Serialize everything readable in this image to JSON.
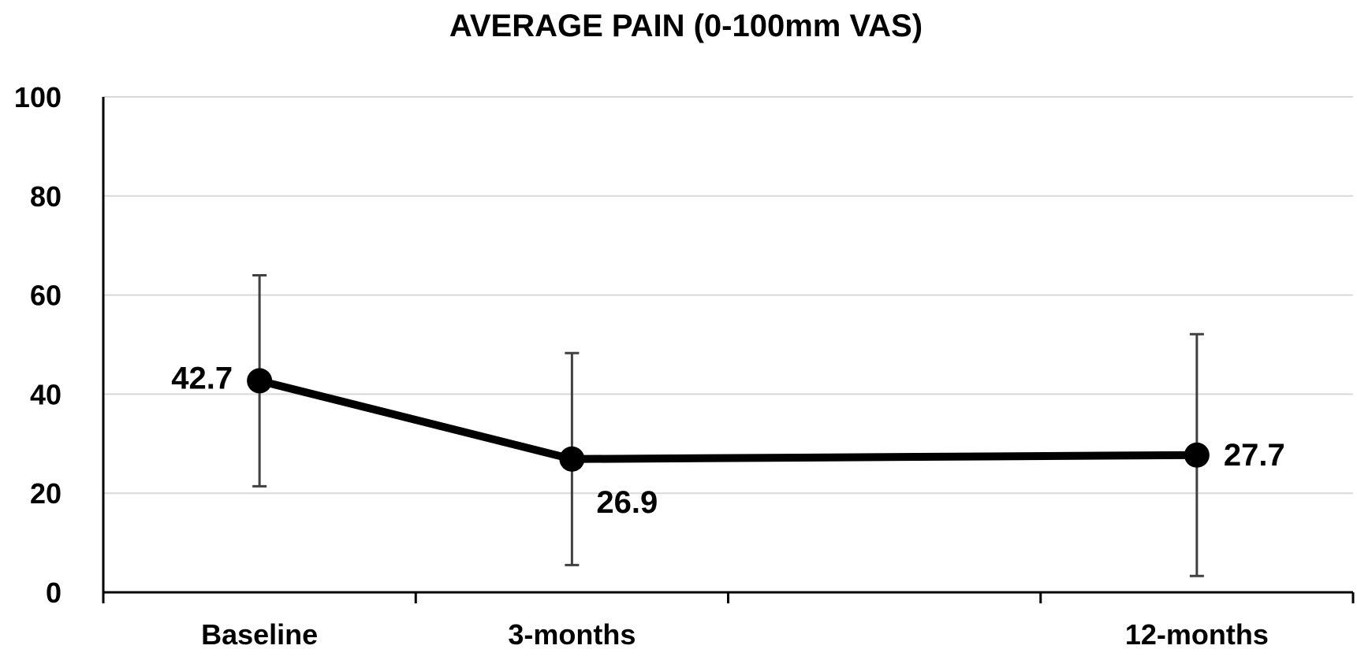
{
  "chart_data": {
    "type": "line",
    "title": "AVERAGE PAIN (0-100mm VAS)",
    "xlabel": "",
    "ylabel": "",
    "categories": [
      "Baseline",
      "3-months",
      "12-months"
    ],
    "x_positions": [
      0.5,
      1.5,
      3.5
    ],
    "x_range": [
      0,
      4
    ],
    "ylim": [
      0,
      100
    ],
    "yticks": [
      0,
      20,
      40,
      60,
      80,
      100
    ],
    "grid": true,
    "legend": "none",
    "series": [
      {
        "values": [
          42.7,
          26.9,
          27.7
        ],
        "data_labels": [
          "42.7",
          "26.9",
          "27.7"
        ],
        "label_placement": [
          "left",
          "below-right",
          "right"
        ],
        "error_low": [
          21.4,
          5.5,
          3.3
        ],
        "error_high": [
          64,
          48.3,
          52.1
        ],
        "color": "#000000"
      }
    ],
    "colors": {
      "line": "#000000",
      "gridline": "#d9d9d9",
      "error_bar": "#404040",
      "axis": "#000000"
    }
  }
}
